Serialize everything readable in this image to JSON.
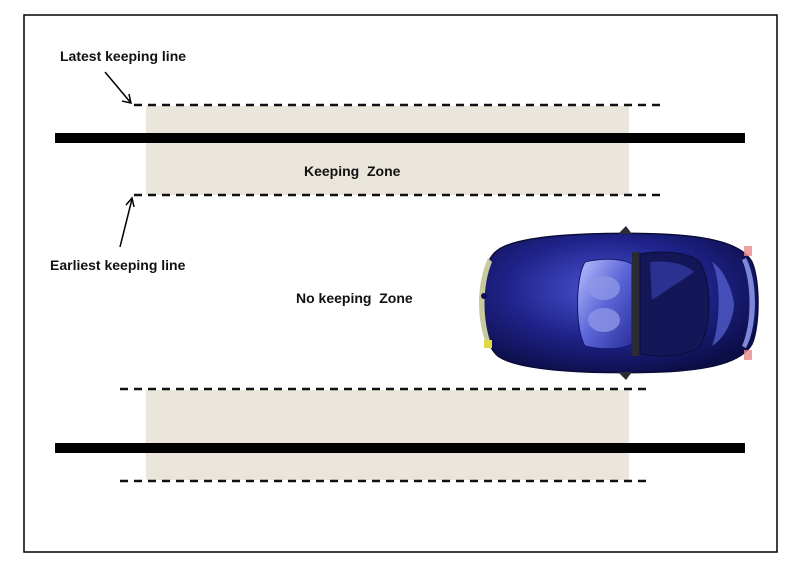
{
  "labels": {
    "latest_keeping_line": "Latest keeping line",
    "keeping_zone": "Keeping  Zone",
    "earliest_keeping_line": "Earliest keeping line",
    "no_keeping_zone": "No keeping  Zone"
  },
  "colors": {
    "zone_fill": "#eae6dc",
    "stop_line": "#000000",
    "dashed_line": "#111111",
    "car_body": "#1c1f7a",
    "border": "#000000"
  },
  "icons": {
    "car": "car-top-view-icon"
  }
}
